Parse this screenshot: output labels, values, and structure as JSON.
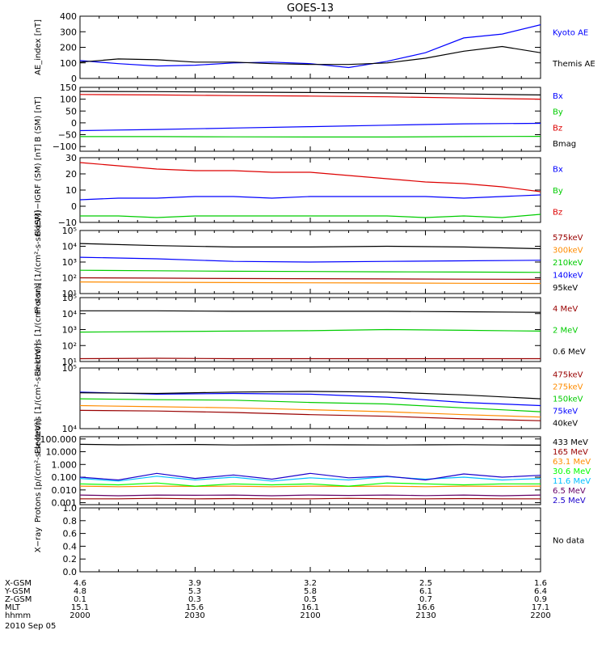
{
  "title": "GOES-13",
  "colors": {
    "black": "#000000",
    "blue": "#0000ff",
    "green": "#00cc00",
    "red": "#dd0000",
    "darkred": "#990000",
    "orange": "#ff8c00",
    "yellow": "#ffd700",
    "lime": "#00ff00",
    "cyan": "#00bfff",
    "purple": "#660066",
    "navy": "#1a00cc"
  },
  "chart_data": [
    {
      "type": "line",
      "ylabel": "AE_index [nT]",
      "ylim": [
        0,
        400
      ],
      "log": false,
      "ticks": [
        "0",
        "100",
        "200",
        "300",
        "400"
      ],
      "tickvals": [
        0,
        100,
        200,
        300,
        400
      ],
      "x": [
        0,
        10,
        20,
        30,
        40,
        50,
        60,
        70,
        80,
        90,
        100,
        110,
        120
      ],
      "series": [
        {
          "name": "Kyoto AE",
          "color": "blue",
          "values": [
            115,
            95,
            80,
            85,
            100,
            105,
            95,
            70,
            110,
            165,
            260,
            285,
            345
          ]
        },
        {
          "name": "Themis AE",
          "color": "black",
          "values": [
            105,
            125,
            120,
            105,
            105,
            95,
            90,
            90,
            100,
            130,
            175,
            205,
            165
          ]
        }
      ]
    },
    {
      "type": "line",
      "ylabel": "B (SM) [nT]",
      "ylim": [
        -120,
        150
      ],
      "log": false,
      "ticks": [
        "−100",
        "−50",
        "0",
        "50",
        "100",
        "150"
      ],
      "tickvals": [
        -100,
        -50,
        0,
        50,
        100,
        150
      ],
      "x": [
        0,
        20,
        40,
        60,
        80,
        100,
        120
      ],
      "series": [
        {
          "name": "Bx",
          "color": "blue",
          "values": [
            -33,
            -28,
            -22,
            -16,
            -10,
            -4,
            -2
          ]
        },
        {
          "name": "By",
          "color": "green",
          "values": [
            -58,
            -58,
            -59,
            -60,
            -60,
            -58,
            -57
          ]
        },
        {
          "name": "Bz",
          "color": "red",
          "values": [
            120,
            118,
            115,
            113,
            110,
            105,
            100
          ]
        },
        {
          "name": "Bmag",
          "color": "black",
          "values": [
            133,
            132,
            130,
            128,
            126,
            122,
            118
          ]
        }
      ]
    },
    {
      "type": "line",
      "ylabel": "B (SM)−IGRF (SM) [nT]",
      "ylim": [
        -10,
        30
      ],
      "log": false,
      "ticks": [
        "−10",
        "0",
        "10",
        "20",
        "30"
      ],
      "tickvals": [
        -10,
        0,
        10,
        20,
        30
      ],
      "x": [
        0,
        10,
        20,
        30,
        40,
        50,
        60,
        70,
        80,
        90,
        100,
        110,
        120
      ],
      "series": [
        {
          "name": "Bx",
          "color": "blue",
          "values": [
            4,
            5,
            5,
            6,
            6,
            5,
            6,
            6,
            6,
            6,
            5,
            6,
            7
          ]
        },
        {
          "name": "By",
          "color": "green",
          "values": [
            -6,
            -6,
            -7,
            -6,
            -6,
            -6,
            -6,
            -6,
            -6,
            -7,
            -6,
            -7,
            -5
          ]
        },
        {
          "name": "Bz",
          "color": "red",
          "values": [
            27,
            25,
            23,
            22,
            22,
            21,
            21,
            19,
            17,
            15,
            14,
            12,
            9
          ]
        }
      ]
    },
    {
      "type": "line",
      "ylabel": "Protons [1/(cm²-s-sr-keV)]",
      "ylim": [
        10,
        100000
      ],
      "log": true,
      "ticks": [
        "10¹",
        "10²",
        "10³",
        "10⁴",
        "10⁵"
      ],
      "tickvals": [
        10,
        100,
        1000,
        10000,
        100000
      ],
      "x": [
        0,
        20,
        40,
        60,
        80,
        100,
        120
      ],
      "series": [
        {
          "name": "575keV",
          "color": "darkred",
          "values": [
            100,
            95,
            90,
            88,
            85,
            82,
            80
          ]
        },
        {
          "name": "300keV",
          "color": "orange",
          "values": [
            55,
            52,
            50,
            48,
            47,
            45,
            44
          ]
        },
        {
          "name": "210keV",
          "color": "green",
          "values": [
            300,
            280,
            260,
            250,
            240,
            230,
            220
          ]
        },
        {
          "name": "140keV",
          "color": "blue",
          "values": [
            2000,
            1600,
            1100,
            1000,
            1100,
            1200,
            1300
          ]
        },
        {
          "name": "95keV",
          "color": "black",
          "values": [
            15000,
            11000,
            9000,
            9000,
            10000,
            9000,
            7000
          ]
        }
      ]
    },
    {
      "type": "line",
      "ylabel": "Electrons [1/(cm²-s-sr)]",
      "ylim": [
        10,
        100000
      ],
      "log": true,
      "ticks": [
        "10¹",
        "10²",
        "10³",
        "10⁴",
        "10⁵"
      ],
      "tickvals": [
        10,
        100,
        1000,
        10000,
        100000
      ],
      "x": [
        0,
        20,
        40,
        60,
        80,
        100,
        120
      ],
      "series": [
        {
          "name": "4 MeV",
          "color": "darkred",
          "values": [
            15,
            16,
            15,
            15,
            15,
            15,
            15
          ]
        },
        {
          "name": "2 MeV",
          "color": "green",
          "values": [
            700,
            750,
            800,
            850,
            1000,
            900,
            800
          ]
        },
        {
          "name": "0.6 MeV",
          "color": "black",
          "values": [
            15000,
            15000,
            14000,
            14000,
            14000,
            13000,
            12000
          ]
        }
      ]
    },
    {
      "type": "line",
      "ylabel": "Electrons [1/(cm²-s-sr-keV)]",
      "ylim": [
        10000,
        100000
      ],
      "log": true,
      "ticks": [
        "10⁴",
        "10⁵"
      ],
      "tickvals": [
        10000,
        100000
      ],
      "x": [
        0,
        20,
        40,
        60,
        80,
        100,
        120
      ],
      "series": [
        {
          "name": "475keV",
          "color": "darkred",
          "values": [
            20000,
            19500,
            18500,
            17000,
            16000,
            14500,
            13500
          ]
        },
        {
          "name": "275keV",
          "color": "orange",
          "values": [
            24000,
            23000,
            22000,
            20500,
            19000,
            17000,
            15500
          ]
        },
        {
          "name": "150keV",
          "color": "green",
          "values": [
            31000,
            30000,
            29500,
            27000,
            25500,
            22000,
            19000
          ]
        },
        {
          "name": "75keV",
          "color": "blue",
          "values": [
            40000,
            37000,
            38000,
            37000,
            33000,
            27000,
            24000
          ]
        },
        {
          "name": "40keV",
          "color": "black",
          "values": [
            39000,
            38000,
            40000,
            41000,
            40000,
            36000,
            31000
          ]
        }
      ]
    },
    {
      "type": "line",
      "ylabel": "Protons [p/(cm²-s-sr-keV)]",
      "ylim": [
        0.0007,
        150
      ],
      "log": true,
      "ticks": [
        "0.001",
        "0.010",
        "0.100",
        "1.000",
        "10.000",
        "100.000"
      ],
      "tickvals": [
        0.001,
        0.01,
        0.1,
        1,
        10,
        100
      ],
      "x": [
        0,
        10,
        20,
        30,
        40,
        50,
        60,
        70,
        80,
        90,
        100,
        110,
        120
      ],
      "series": [
        {
          "name": "433 MeV",
          "color": "black",
          "values": [
            38,
            35,
            36,
            37,
            34,
            35,
            36,
            35,
            34,
            35,
            36,
            34,
            33
          ]
        },
        {
          "name": "165 MeV",
          "color": "darkred",
          "values": [
            0.002,
            0.002,
            0.0022,
            0.002,
            0.0021,
            0.002,
            0.002,
            0.0022,
            0.002,
            0.002,
            0.0021,
            0.002,
            0.002
          ]
        },
        {
          "name": "63.1 MeV",
          "color": "orange",
          "values": [
            0.02,
            0.018,
            0.02,
            0.019,
            0.02,
            0.018,
            0.02,
            0.019,
            0.02,
            0.018,
            0.02,
            0.019,
            0.02
          ]
        },
        {
          "name": "30.6 MeV",
          "color": "lime",
          "values": [
            0.03,
            0.025,
            0.035,
            0.02,
            0.03,
            0.025,
            0.03,
            0.02,
            0.035,
            0.03,
            0.025,
            0.03,
            0.03
          ]
        },
        {
          "name": "11.6 MeV",
          "color": "cyan",
          "values": [
            0.08,
            0.05,
            0.12,
            0.06,
            0.1,
            0.05,
            0.09,
            0.06,
            0.11,
            0.07,
            0.1,
            0.06,
            0.08
          ]
        },
        {
          "name": "6.5 MeV",
          "color": "purple",
          "values": [
            0.004,
            0.0035,
            0.004,
            0.0038,
            0.004,
            0.0035,
            0.004,
            0.0037,
            0.004,
            0.0036,
            0.004,
            0.0035,
            0.004
          ]
        },
        {
          "name": "2.5 MeV",
          "color": "navy",
          "values": [
            0.1,
            0.06,
            0.2,
            0.08,
            0.15,
            0.07,
            0.2,
            0.09,
            0.12,
            0.06,
            0.18,
            0.1,
            0.14
          ]
        }
      ]
    },
    {
      "type": "line",
      "ylabel": "X−ray",
      "ylim": [
        0,
        1
      ],
      "log": false,
      "ticks": [
        "0.0",
        "0.2",
        "0.4",
        "0.6",
        "0.8",
        "1.0"
      ],
      "tickvals": [
        0,
        0.2,
        0.4,
        0.6,
        0.8,
        1.0
      ],
      "x": [],
      "series": [],
      "note": "No data"
    }
  ],
  "footer": {
    "rows": [
      {
        "label": "X-GSM",
        "values": [
          "4.6",
          "3.9",
          "3.2",
          "2.5",
          "1.6"
        ]
      },
      {
        "label": "Y-GSM",
        "values": [
          "4.8",
          "5.3",
          "5.8",
          "6.1",
          "6.4"
        ]
      },
      {
        "label": "Z-GSM",
        "values": [
          "0.1",
          "0.3",
          "0.5",
          "0.7",
          "0.9"
        ]
      },
      {
        "label": "MLT",
        "values": [
          "15.1",
          "15.6",
          "16.1",
          "16.6",
          "17.1"
        ]
      },
      {
        "label": "hhmm",
        "values": [
          "2000",
          "2030",
          "2100",
          "2130",
          "2200"
        ]
      }
    ],
    "date": "2010 Sep 05"
  }
}
